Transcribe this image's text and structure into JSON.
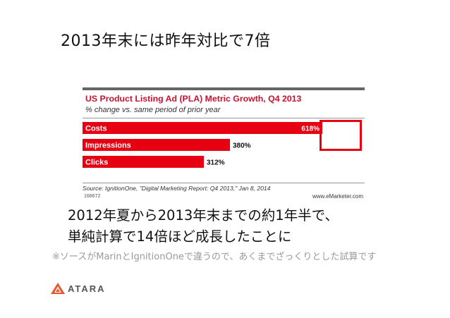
{
  "slide": {
    "title": "2013年末には昨年対比で7倍",
    "summary_line1": "2012年夏から2013年末までの約1年半で、",
    "summary_line2": "単純計算で14倍ほど成長したことに",
    "note": "※ソースがMarinとIgnitionOneで違うので、あくまでざっくりとした試算です",
    "logo_text": "ATARA",
    "logo_icon": "atara-logo-icon",
    "highlight_color": "#e60012"
  },
  "chart_data": {
    "type": "bar",
    "orientation": "horizontal",
    "title": "US Product Listing Ad (PLA) Metric Growth, Q4 2013",
    "subtitle": "% change vs. same period of prior year",
    "categories": [
      "Costs",
      "Impressions",
      "Clicks"
    ],
    "values": [
      618,
      380,
      312
    ],
    "value_labels": [
      "618%",
      "380%",
      "312%"
    ],
    "xlim": [
      0,
      618
    ],
    "bar_color": "#e60012",
    "source": "Source: IgnitionOne, \"Digital Marketing Report: Q4 2013,\" Jan 8, 2014",
    "chart_id": "168672",
    "brand": "www.eMarketer.com",
    "grid": false,
    "legend": "none"
  }
}
